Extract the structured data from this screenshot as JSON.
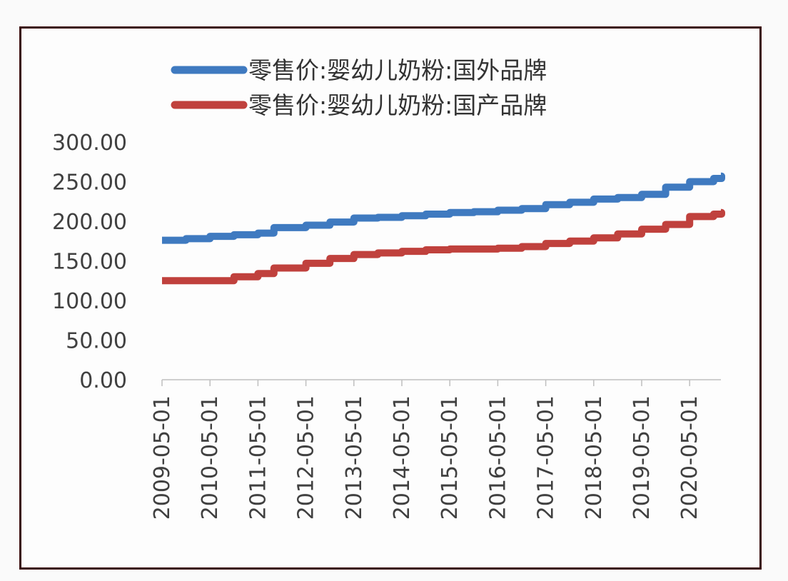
{
  "chart_data": {
    "type": "line",
    "title": "",
    "xlabel": "",
    "ylabel": "",
    "ylim": [
      0,
      300
    ],
    "yticks": [
      "0.00",
      "50.00",
      "100.00",
      "150.00",
      "200.00",
      "250.00",
      "300.00"
    ],
    "xticks": [
      "2009-05-01",
      "2010-05-01",
      "2011-05-01",
      "2012-05-01",
      "2013-05-01",
      "2014-05-01",
      "2015-05-01",
      "2016-05-01",
      "2017-05-01",
      "2018-05-01",
      "2019-05-01",
      "2020-05-01"
    ],
    "grid": false,
    "legend_position": "top",
    "x": [
      "2009-05",
      "2009-11",
      "2010-05",
      "2010-11",
      "2011-05",
      "2011-09",
      "2012-05",
      "2012-11",
      "2013-05",
      "2013-11",
      "2014-05",
      "2014-11",
      "2015-05",
      "2015-11",
      "2016-05",
      "2016-11",
      "2017-05",
      "2017-11",
      "2018-05",
      "2018-11",
      "2019-05",
      "2019-11",
      "2020-05",
      "2020-11",
      "2021-01"
    ],
    "series": [
      {
        "name": "零售价:婴幼儿奶粉:国外品牌",
        "color": "#3f7ac0",
        "values": [
          176,
          178,
          181,
          183,
          185,
          192,
          195,
          199,
          204,
          205,
          207,
          209,
          211,
          212,
          214,
          216,
          221,
          224,
          228,
          230,
          234,
          243,
          250,
          254,
          257
        ]
      },
      {
        "name": "零售价:婴幼儿奶粉:国产品牌",
        "color": "#c0413d",
        "values": [
          125,
          125,
          125,
          130,
          134,
          141,
          147,
          153,
          158,
          160,
          162,
          164,
          165,
          165,
          166,
          168,
          172,
          175,
          179,
          184,
          190,
          196,
          206,
          209,
          211
        ]
      }
    ]
  }
}
